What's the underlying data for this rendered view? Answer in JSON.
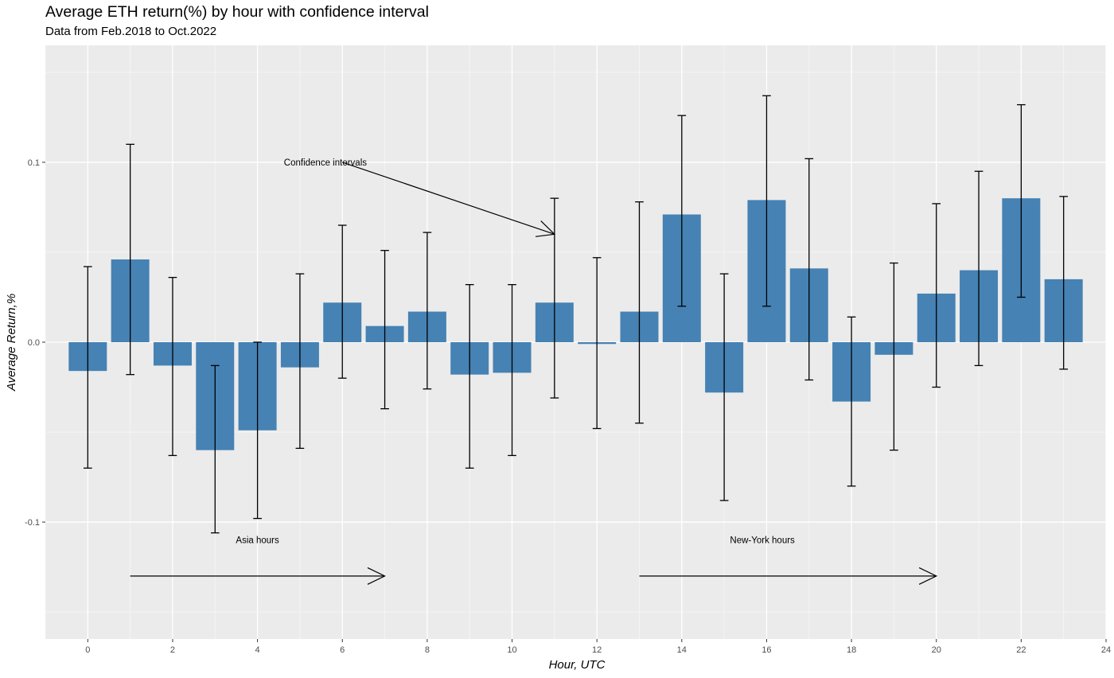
{
  "chart_data": {
    "type": "bar",
    "title": "Average ETH return(%) by hour with confidence interval",
    "subtitle": "Data from Feb.2018 to Oct.2022",
    "xlabel": "Hour, UTC",
    "ylabel": "Average Return,%",
    "xlim": [
      -1,
      24
    ],
    "ylim": [
      -0.165,
      0.165
    ],
    "x_ticks": [
      0,
      2,
      4,
      6,
      8,
      10,
      12,
      14,
      16,
      18,
      20,
      22,
      24
    ],
    "y_ticks": [
      -0.1,
      0.0,
      0.1
    ],
    "y_tick_labels": [
      "-0.1",
      "0.0",
      "0.1"
    ],
    "grid": true,
    "bar_color": "#4682B4",
    "panel_color": "#EBEBEB",
    "hours": [
      0,
      1,
      2,
      3,
      4,
      5,
      6,
      7,
      8,
      9,
      10,
      11,
      12,
      13,
      14,
      15,
      16,
      17,
      18,
      19,
      20,
      21,
      22,
      23
    ],
    "values": [
      -0.016,
      0.046,
      -0.013,
      -0.06,
      -0.049,
      -0.014,
      0.022,
      0.009,
      0.017,
      -0.018,
      -0.017,
      0.022,
      -0.001,
      0.017,
      0.071,
      -0.028,
      0.079,
      0.041,
      -0.033,
      -0.007,
      0.027,
      0.04,
      0.08,
      0.035
    ],
    "ci_low": [
      -0.07,
      -0.018,
      -0.063,
      -0.106,
      -0.098,
      -0.059,
      -0.02,
      -0.037,
      -0.026,
      -0.07,
      -0.063,
      -0.031,
      -0.048,
      -0.045,
      0.02,
      -0.088,
      0.02,
      -0.021,
      -0.08,
      -0.06,
      -0.025,
      -0.013,
      0.025,
      -0.015
    ],
    "ci_high": [
      0.042,
      0.11,
      0.036,
      -0.013,
      0.0,
      0.038,
      0.065,
      0.051,
      0.061,
      0.032,
      0.032,
      0.08,
      0.047,
      0.078,
      0.126,
      0.038,
      0.137,
      0.102,
      0.014,
      0.044,
      0.077,
      0.095,
      0.132,
      0.081
    ],
    "annotations": [
      {
        "text": "Confidence intervals",
        "x": 5.6,
        "y": 0.1
      },
      {
        "text": "Asia hours",
        "x": 4.0,
        "y": -0.11
      },
      {
        "text": "New-York hours",
        "x": 15.9,
        "y": -0.11
      }
    ],
    "arrows": [
      {
        "from": [
          6.0,
          0.1
        ],
        "to": [
          11.0,
          0.06
        ]
      },
      {
        "from": [
          1.0,
          -0.13
        ],
        "to": [
          7.0,
          -0.13
        ]
      },
      {
        "from": [
          13.0,
          -0.13
        ],
        "to": [
          20.0,
          -0.13
        ]
      }
    ]
  }
}
